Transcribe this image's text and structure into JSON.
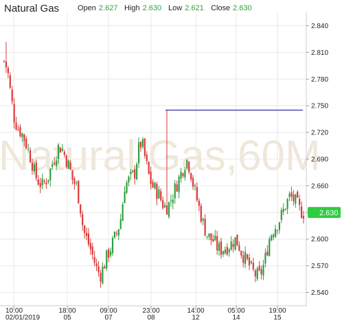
{
  "header": {
    "title": "Natural Gas",
    "open_label": "Open",
    "open_value": "2.627",
    "high_label": "High",
    "high_value": "2.630",
    "low_label": "Low",
    "low_value": "2.621",
    "close_label": "Close",
    "close_value": "2.630"
  },
  "watermark": "Natural Gas,60M",
  "colors": {
    "up": "#2e9e3e",
    "down": "#d93a3a",
    "hline": "#4b4bb0",
    "badge": "#2ecc40",
    "grid": "#e8e8e8"
  },
  "chart_data": {
    "type": "candlestick",
    "title": "Natural Gas",
    "interval": "60M",
    "ylim": [
      2.525,
      2.855
    ],
    "y_ticks": [
      "2.840",
      "2.810",
      "2.780",
      "2.750",
      "2.720",
      "2.690",
      "2.660",
      "2.630",
      "2.600",
      "2.570",
      "2.540"
    ],
    "x_ticks": [
      {
        "time": "10:00",
        "date": "02/01/2019"
      },
      {
        "time": "18:00",
        "date": "05"
      },
      {
        "time": "09:00",
        "date": "07"
      },
      {
        "time": "23:00",
        "date": "08"
      },
      {
        "time": "14:00",
        "date": "12"
      },
      {
        "time": "05:00",
        "date": "14"
      },
      {
        "time": "19:00",
        "date": "15"
      }
    ],
    "horizontal_line": 2.745,
    "last_price": "2.630",
    "close_path": [
      2.8,
      2.79,
      2.76,
      2.735,
      2.725,
      2.72,
      2.712,
      2.7,
      2.688,
      2.672,
      2.665,
      2.66,
      2.665,
      2.672,
      2.685,
      2.695,
      2.705,
      2.7,
      2.69,
      2.68,
      2.665,
      2.66,
      2.64,
      2.61,
      2.6,
      2.59,
      2.578,
      2.565,
      2.56,
      2.57,
      2.582,
      2.59,
      2.6,
      2.61,
      2.625,
      2.66,
      2.665,
      2.67,
      2.675,
      2.7,
      2.71,
      2.69,
      2.672,
      2.66,
      2.655,
      2.65,
      2.64,
      2.635,
      2.64,
      2.65,
      2.66,
      2.67,
      2.68,
      2.69,
      2.68,
      2.66,
      2.645,
      2.63,
      2.615,
      2.605,
      2.6,
      2.598,
      2.59,
      2.588,
      2.59,
      2.592,
      2.595,
      2.6,
      2.595,
      2.585,
      2.578,
      2.572,
      2.565,
      2.56,
      2.558,
      2.565,
      2.58,
      2.6,
      2.61,
      2.615,
      2.622,
      2.63,
      2.64,
      2.648,
      2.645,
      2.64,
      2.632,
      2.63
    ]
  }
}
